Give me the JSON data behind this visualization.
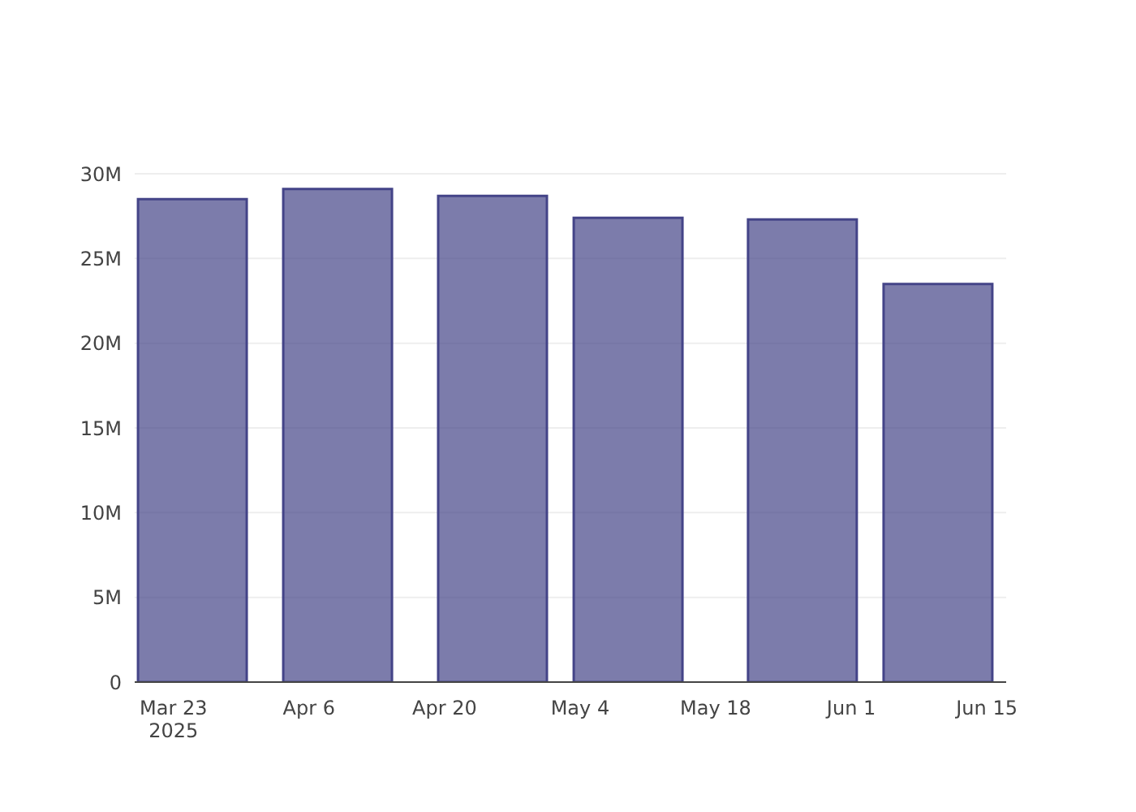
{
  "chart_data": {
    "type": "bar",
    "x": [
      "2025-03-25",
      "2025-04-09",
      "2025-04-25",
      "2025-05-09",
      "2025-05-27",
      "2025-06-10"
    ],
    "series": [
      {
        "color": "#444488",
        "values": [
          28500000,
          29100000,
          28700000,
          27400000,
          27300000,
          23500000
        ]
      }
    ],
    "xlim": [
      "2025-03-19",
      "2025-06-17"
    ],
    "xticks": [
      {
        "value": "2025-03-23",
        "label": "Mar 23\n2025"
      },
      {
        "value": "2025-04-06",
        "label": "Apr 6"
      },
      {
        "value": "2025-04-20",
        "label": "Apr 20"
      },
      {
        "value": "2025-05-04",
        "label": "May 4"
      },
      {
        "value": "2025-05-18",
        "label": "May 18"
      },
      {
        "value": "2025-06-01",
        "label": "Jun 1"
      },
      {
        "value": "2025-06-15",
        "label": "Jun 15"
      }
    ],
    "ylim": [
      0,
      30000000
    ],
    "yticks": [
      {
        "value": 0,
        "label": "0"
      },
      {
        "value": 5000000,
        "label": "5M"
      },
      {
        "value": 10000000,
        "label": "10M"
      },
      {
        "value": 15000000,
        "label": "15M"
      },
      {
        "value": 20000000,
        "label": "20M"
      },
      {
        "value": 25000000,
        "label": "25M"
      },
      {
        "value": 30000000,
        "label": "30M"
      }
    ],
    "grid": "y"
  }
}
